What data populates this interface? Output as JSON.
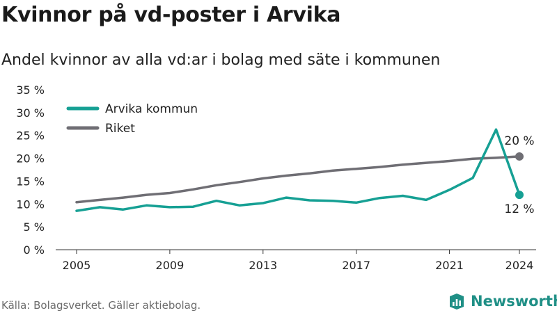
{
  "title": "Kvinnor på vd-poster i Arvika",
  "subtitle": "Andel kvinnor av alla vd:ar i bolag med säte i kommunen",
  "source": "Källa: Bolagsverket. Gäller aktiebolag.",
  "brand": {
    "name": "Newsworthy",
    "icon": "newsworthy-logo-icon",
    "color": "#1f8f86"
  },
  "chart_data": {
    "type": "line",
    "title": "Kvinnor på vd-poster i Arvika",
    "subtitle": "Andel kvinnor av alla vd:ar i bolag med säte i kommunen",
    "x": [
      2005,
      2006,
      2007,
      2008,
      2009,
      2010,
      2011,
      2012,
      2013,
      2014,
      2015,
      2016,
      2017,
      2018,
      2019,
      2020,
      2021,
      2022,
      2023,
      2024
    ],
    "x_ticks": [
      2005,
      2009,
      2013,
      2017,
      2021,
      2024
    ],
    "y_ticks": [
      0,
      5,
      10,
      15,
      20,
      25,
      30,
      35
    ],
    "y_tick_labels": [
      "0 %",
      "5 %",
      "10 %",
      "15 %",
      "20 %",
      "25 %",
      "30 %",
      "35 %"
    ],
    "ylim": [
      0,
      35
    ],
    "grid": false,
    "legend_position": "top-left",
    "series": [
      {
        "name": "Arvika kommun",
        "color": "#16a094",
        "values": [
          8.5,
          9.3,
          8.8,
          9.7,
          9.3,
          9.4,
          10.7,
          9.7,
          10.2,
          11.4,
          10.8,
          10.7,
          10.3,
          11.3,
          11.8,
          10.9,
          13.1,
          15.7,
          26.3,
          12.0
        ],
        "end_label": "12 %"
      },
      {
        "name": "Riket",
        "color": "#6f6e74",
        "values": [
          10.4,
          10.9,
          11.4,
          12.0,
          12.4,
          13.2,
          14.1,
          14.8,
          15.6,
          16.2,
          16.7,
          17.3,
          17.7,
          18.1,
          18.6,
          19.0,
          19.4,
          19.9,
          20.1,
          20.4
        ],
        "end_label": "20 %"
      }
    ]
  }
}
